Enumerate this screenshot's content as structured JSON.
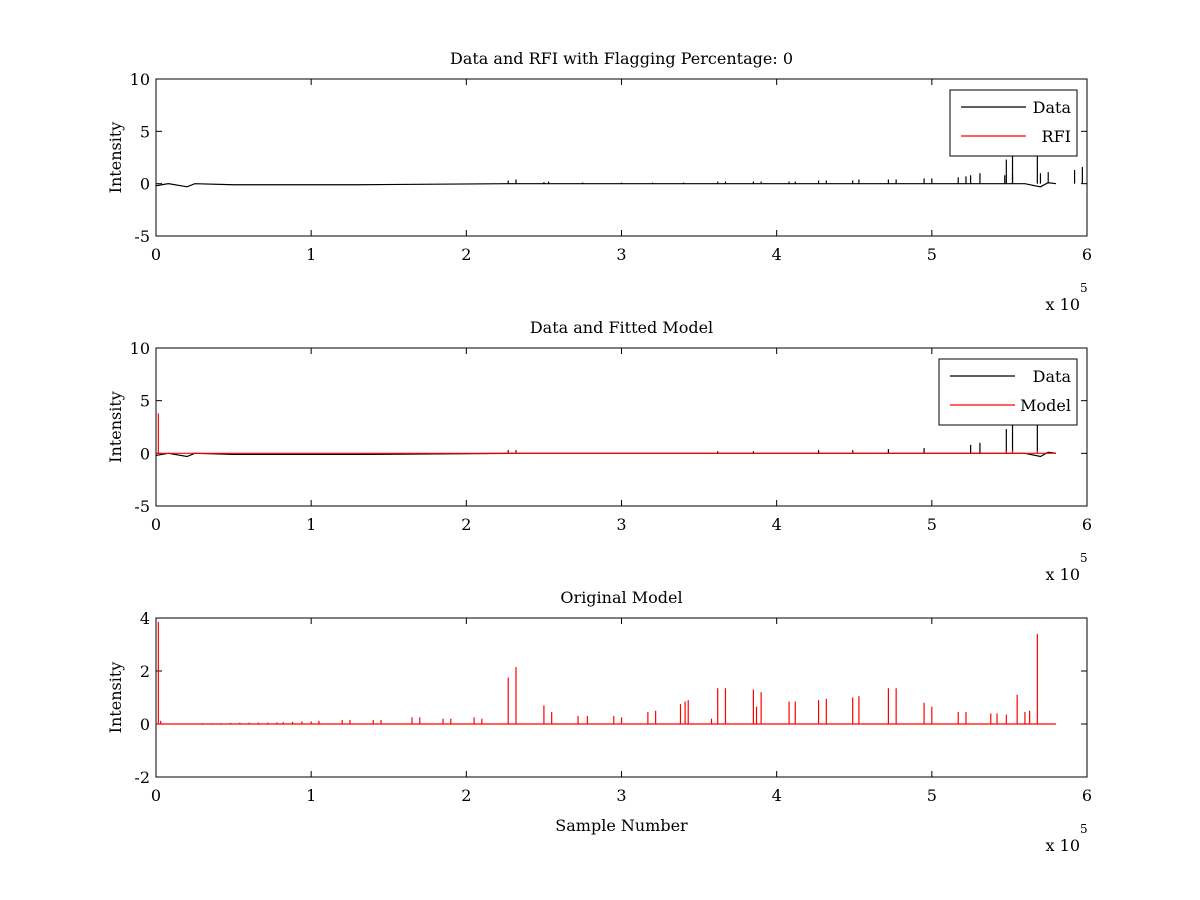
{
  "colors": {
    "data": "#000000",
    "rfi": "#ff0000",
    "model": "#ff0000",
    "axes": "#000000",
    "background": "#ffffff"
  },
  "chart_data": [
    {
      "type": "line",
      "title": "Data and RFI with Flagging Percentage: 0",
      "xlabel": "",
      "ylabel": "Intensity",
      "xlim": [
        0,
        600000
      ],
      "ylim": [
        -5,
        10
      ],
      "xticks": [
        0,
        1,
        2,
        3,
        4,
        5,
        6
      ],
      "yticks": [
        -5,
        0,
        5,
        10
      ],
      "x_multiplier": {
        "base": "x 10",
        "exponent": "5"
      },
      "legend": {
        "position": "top-right",
        "entries": [
          "Data",
          "RFI"
        ]
      },
      "series": [
        {
          "name": "Data",
          "color": "#000000",
          "baseline": 0,
          "extent": [
            0,
            580000
          ],
          "baseline_wiggle": [
            [
              0,
              -0.2
            ],
            [
              8000,
              0
            ],
            [
              20000,
              -0.3
            ],
            [
              25000,
              0
            ],
            [
              50000,
              -0.1
            ],
            [
              130000,
              -0.1
            ],
            [
              230000,
              0
            ],
            [
              560000,
              0
            ],
            [
              570000,
              -0.3
            ],
            [
              575000,
              0.1
            ],
            [
              580000,
              0
            ]
          ],
          "spikes": [
            [
              227000,
              0.3
            ],
            [
              232000,
              0.4
            ],
            [
              250000,
              0.15
            ],
            [
              253000,
              0.2
            ],
            [
              275000,
              0.1
            ],
            [
              300000,
              0.1
            ],
            [
              320000,
              0.1
            ],
            [
              340000,
              0.1
            ],
            [
              362000,
              0.2
            ],
            [
              367000,
              0.2
            ],
            [
              385000,
              0.2
            ],
            [
              390000,
              0.2
            ],
            [
              408000,
              0.2
            ],
            [
              412000,
              0.2
            ],
            [
              427000,
              0.3
            ],
            [
              432000,
              0.3
            ],
            [
              449000,
              0.3
            ],
            [
              453000,
              0.4
            ],
            [
              472000,
              0.4
            ],
            [
              477000,
              0.4
            ],
            [
              495000,
              0.5
            ],
            [
              500000,
              0.5
            ],
            [
              517000,
              0.6
            ],
            [
              522000,
              0.7
            ],
            [
              547000,
              0.8
            ],
            [
              552000,
              0.9
            ],
            [
              570000,
              1.0
            ],
            [
              575000,
              1.1
            ],
            [
              592000,
              1.3
            ],
            [
              597000,
              1.6
            ],
            [
              525000,
              0.8
            ],
            [
              531000,
              1.0
            ],
            [
              548000,
              2.3
            ],
            [
              552000,
              2.7
            ],
            [
              568000,
              9.0
            ]
          ]
        },
        {
          "name": "RFI",
          "color": "#ff0000",
          "points": []
        }
      ]
    },
    {
      "type": "line",
      "title": "Data and Fitted Model",
      "xlabel": "",
      "ylabel": "Intensity",
      "xlim": [
        0,
        600000
      ],
      "ylim": [
        -5,
        10
      ],
      "xticks": [
        0,
        1,
        2,
        3,
        4,
        5,
        6
      ],
      "yticks": [
        -5,
        0,
        5,
        10
      ],
      "x_multiplier": {
        "base": "x 10",
        "exponent": "5"
      },
      "legend": {
        "position": "top-right",
        "entries": [
          "Data",
          "Model"
        ]
      },
      "series": [
        {
          "name": "Data",
          "color": "#000000",
          "baseline": 0,
          "extent": [
            0,
            580000
          ],
          "baseline_wiggle": [
            [
              0,
              -0.2
            ],
            [
              8000,
              0
            ],
            [
              20000,
              -0.3
            ],
            [
              25000,
              0
            ],
            [
              50000,
              -0.1
            ],
            [
              130000,
              -0.1
            ],
            [
              230000,
              0
            ],
            [
              560000,
              0
            ],
            [
              570000,
              -0.3
            ],
            [
              575000,
              0.1
            ],
            [
              580000,
              0
            ]
          ],
          "spikes": [
            [
              227000,
              0.3
            ],
            [
              232000,
              0.3
            ],
            [
              362000,
              0.2
            ],
            [
              385000,
              0.2
            ],
            [
              427000,
              0.3
            ],
            [
              449000,
              0.3
            ],
            [
              472000,
              0.4
            ],
            [
              495000,
              0.5
            ],
            [
              525000,
              0.8
            ],
            [
              531000,
              1.0
            ],
            [
              548000,
              2.3
            ],
            [
              552000,
              2.7
            ],
            [
              568000,
              9.0
            ]
          ]
        },
        {
          "name": "Model",
          "color": "#ff0000",
          "baseline": 0,
          "extent": [
            0,
            580000
          ],
          "spikes": [
            [
              1500,
              3.8
            ],
            [
              227000,
              0.2
            ],
            [
              232000,
              0.2
            ],
            [
              362000,
              0.1
            ],
            [
              449000,
              0.2
            ],
            [
              548000,
              0.3
            ],
            [
              552000,
              0.3
            ],
            [
              568000,
              0.3
            ]
          ]
        }
      ]
    },
    {
      "type": "line",
      "title": "Original Model",
      "xlabel": "Sample Number",
      "ylabel": "Intensity",
      "xlim": [
        0,
        600000
      ],
      "ylim": [
        -2,
        4
      ],
      "xticks": [
        0,
        1,
        2,
        3,
        4,
        5,
        6
      ],
      "yticks": [
        -2,
        0,
        2,
        4
      ],
      "x_multiplier": {
        "base": "x 10",
        "exponent": "5"
      },
      "legend": null,
      "series": [
        {
          "name": "",
          "color": "#ff0000",
          "baseline": 0,
          "extent": [
            0,
            580000
          ],
          "spikes": [
            [
              1500,
              3.85
            ],
            [
              3000,
              0.12
            ],
            [
              30000,
              0.03
            ],
            [
              36000,
              0.03
            ],
            [
              42000,
              0.03
            ],
            [
              48000,
              0.04
            ],
            [
              54000,
              0.05
            ],
            [
              60000,
              0.05
            ],
            [
              66000,
              0.05
            ],
            [
              72000,
              0.05
            ],
            [
              78000,
              0.06
            ],
            [
              82000,
              0.07
            ],
            [
              88000,
              0.08
            ],
            [
              94000,
              0.1
            ],
            [
              100000,
              0.1
            ],
            [
              105000,
              0.12
            ],
            [
              120000,
              0.15
            ],
            [
              125000,
              0.15
            ],
            [
              140000,
              0.15
            ],
            [
              145000,
              0.15
            ],
            [
              165000,
              0.25
            ],
            [
              170000,
              0.25
            ],
            [
              185000,
              0.2
            ],
            [
              190000,
              0.2
            ],
            [
              205000,
              0.25
            ],
            [
              210000,
              0.2
            ],
            [
              227000,
              1.75
            ],
            [
              232000,
              2.15
            ],
            [
              250000,
              0.7
            ],
            [
              255000,
              0.45
            ],
            [
              272000,
              0.3
            ],
            [
              278000,
              0.3
            ],
            [
              295000,
              0.3
            ],
            [
              300000,
              0.25
            ],
            [
              317000,
              0.45
            ],
            [
              322000,
              0.5
            ],
            [
              338000,
              0.75
            ],
            [
              341000,
              0.85
            ],
            [
              343000,
              0.9
            ],
            [
              358000,
              0.2
            ],
            [
              362000,
              1.35
            ],
            [
              367000,
              1.35
            ],
            [
              385000,
              1.3
            ],
            [
              387000,
              0.65
            ],
            [
              390000,
              1.2
            ],
            [
              408000,
              0.85
            ],
            [
              412000,
              0.85
            ],
            [
              427000,
              0.9
            ],
            [
              432000,
              0.95
            ],
            [
              449000,
              1.0
            ],
            [
              453000,
              1.05
            ],
            [
              472000,
              1.35
            ],
            [
              477000,
              1.35
            ],
            [
              495000,
              0.8
            ],
            [
              500000,
              0.65
            ],
            [
              517000,
              0.45
            ],
            [
              522000,
              0.45
            ],
            [
              538000,
              0.4
            ],
            [
              542000,
              0.4
            ],
            [
              548000,
              0.35
            ],
            [
              555000,
              1.1
            ],
            [
              560000,
              0.45
            ],
            [
              563000,
              0.5
            ],
            [
              568000,
              3.4
            ]
          ]
        }
      ]
    }
  ]
}
